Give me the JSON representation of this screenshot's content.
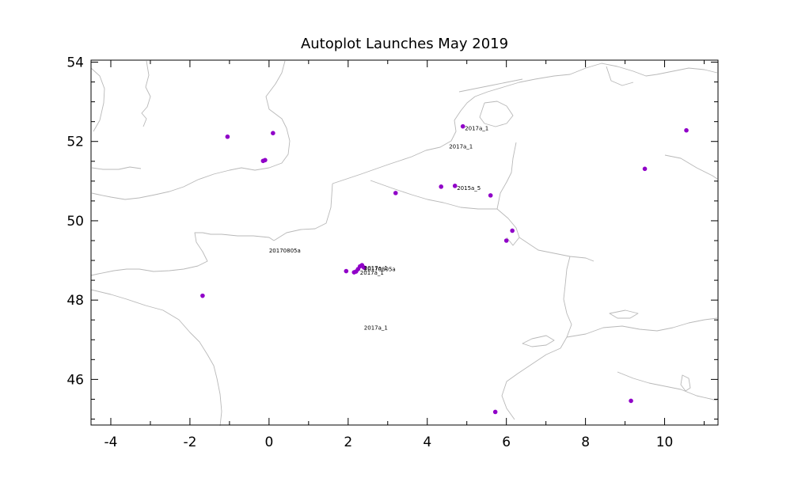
{
  "chart_data": {
    "type": "scatter",
    "title": "Autoplot Launches May 2019",
    "xlabel": "",
    "ylabel": "",
    "xlim": [
      -4.5,
      11.35
    ],
    "ylim": [
      44.85,
      54.05
    ],
    "x_ticks": [
      -4,
      -2,
      0,
      2,
      4,
      6,
      8,
      10
    ],
    "x_tick_labels": [
      "-4",
      "-2",
      "0",
      "2",
      "4",
      "6",
      "8",
      "10"
    ],
    "y_ticks": [
      46,
      48,
      50,
      52,
      54
    ],
    "y_tick_labels": [
      "46",
      "48",
      "50",
      "52",
      "54"
    ],
    "marker_color": "#9000c8",
    "coast_color": "#b8b8b8",
    "points": [
      {
        "lon": -1.05,
        "lat": 52.12
      },
      {
        "lon": 0.1,
        "lat": 52.21
      },
      {
        "lon": -0.15,
        "lat": 51.51
      },
      {
        "lon": -0.1,
        "lat": 51.53
      },
      {
        "lon": 4.9,
        "lat": 52.38
      },
      {
        "lon": 10.55,
        "lat": 52.28
      },
      {
        "lon": 9.5,
        "lat": 51.31
      },
      {
        "lon": 4.35,
        "lat": 50.86
      },
      {
        "lon": 4.7,
        "lat": 50.88
      },
      {
        "lon": 5.6,
        "lat": 50.64
      },
      {
        "lon": 3.2,
        "lat": 50.7
      },
      {
        "lon": 6.15,
        "lat": 49.75
      },
      {
        "lon": 6.0,
        "lat": 49.5
      },
      {
        "lon": 1.95,
        "lat": 48.73
      },
      {
        "lon": 2.15,
        "lat": 48.7
      },
      {
        "lon": 2.25,
        "lat": 48.78
      },
      {
        "lon": 2.3,
        "lat": 48.85
      },
      {
        "lon": 2.35,
        "lat": 48.88
      },
      {
        "lon": 2.4,
        "lat": 48.82
      },
      {
        "lon": 2.2,
        "lat": 48.72
      },
      {
        "lon": -1.68,
        "lat": 48.11
      },
      {
        "lon": 5.72,
        "lat": 45.18
      },
      {
        "lon": 9.15,
        "lat": 45.46
      }
    ],
    "labels": [
      {
        "lon": 4.95,
        "lat": 52.28,
        "text": "2017a_1"
      },
      {
        "lon": 4.55,
        "lat": 51.82,
        "text": "2017a_1"
      },
      {
        "lon": 4.75,
        "lat": 50.78,
        "text": "2015a_5"
      },
      {
        "lon": 0.0,
        "lat": 49.2,
        "text": "20170805a"
      },
      {
        "lon": 2.4,
        "lat": 48.76,
        "text": "2017a_1"
      },
      {
        "lon": 2.4,
        "lat": 48.73,
        "text": "20170805a"
      },
      {
        "lon": 2.3,
        "lat": 48.64,
        "text": "2017a_1"
      },
      {
        "lon": 2.4,
        "lat": 47.25,
        "text": "2017a_1"
      }
    ]
  }
}
